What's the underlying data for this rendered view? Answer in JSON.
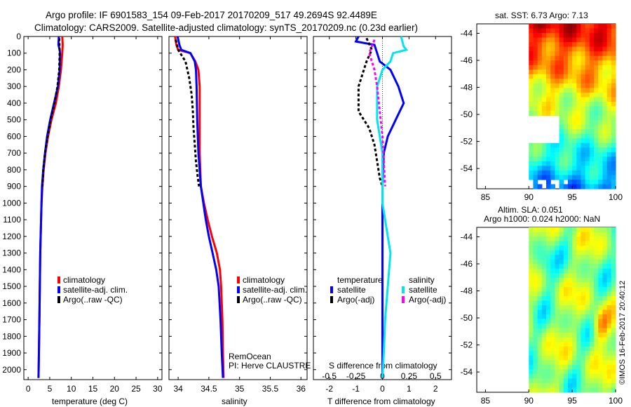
{
  "header": {
    "line1": "Argo profile: IF 6901583_154 09-Feb-2017 20170209_517 49.2694S 92.4489E",
    "line2": "Climatology: CARS2009. Satellite-adjusted climatology: synTS_20170209.nc (0.23d earlier)"
  },
  "colors": {
    "climatology": "#ff0000",
    "satellite": "#0000ff",
    "argo": "#000000",
    "satellite_salinity": "#00e5ee",
    "argo_salinity": "#ff00ff"
  },
  "depth_ticks": [
    "0",
    "100",
    "200",
    "300",
    "400",
    "500",
    "600",
    "700",
    "800",
    "900",
    "1000",
    "1100",
    "1200",
    "1300",
    "1400",
    "1500",
    "1600",
    "1700",
    "1800",
    "1900",
    "2000"
  ],
  "chart_data": [
    {
      "id": "temperature",
      "type": "line",
      "xlabel": "temperature (deg C)",
      "ylabel": "depth",
      "xlim": [
        -1,
        31
      ],
      "ylim": [
        2060,
        0
      ],
      "xticks": [
        "0",
        "5",
        "10",
        "15",
        "20",
        "25",
        "30"
      ],
      "xtick_values": [
        0,
        5,
        10,
        15,
        20,
        25,
        30
      ],
      "legend": [
        "climatology",
        "satellite-adj. clim.",
        "Argo(..raw -QC)"
      ],
      "series": [
        {
          "name": "climatology",
          "color": "#ff0000",
          "dash": "",
          "points": [
            [
              7.9,
              0
            ],
            [
              8.0,
              50
            ],
            [
              7.9,
              100
            ],
            [
              7.6,
              200
            ],
            [
              7.1,
              300
            ],
            [
              6.4,
              400
            ],
            [
              5.4,
              500
            ],
            [
              4.6,
              600
            ],
            [
              4.0,
              700
            ],
            [
              3.6,
              800
            ],
            [
              3.3,
              900
            ],
            [
              3.1,
              1000
            ],
            [
              3.0,
              1100
            ],
            [
              2.9,
              1200
            ],
            [
              2.8,
              1300
            ],
            [
              2.7,
              1500
            ],
            [
              2.6,
              1700
            ],
            [
              2.5,
              1900
            ],
            [
              2.4,
              2050
            ]
          ]
        },
        {
          "name": "satellite-adj. clim.",
          "color": "#0000ff",
          "dash": "",
          "points": [
            [
              7.1,
              0
            ],
            [
              7.0,
              50
            ],
            [
              7.3,
              80
            ],
            [
              7.4,
              100
            ],
            [
              7.3,
              200
            ],
            [
              6.9,
              300
            ],
            [
              6.0,
              400
            ],
            [
              5.1,
              500
            ],
            [
              4.4,
              600
            ],
            [
              3.9,
              700
            ],
            [
              3.5,
              800
            ],
            [
              3.2,
              900
            ],
            [
              3.1,
              1000
            ],
            [
              3.0,
              1100
            ],
            [
              2.9,
              1200
            ],
            [
              2.8,
              1300
            ],
            [
              2.7,
              1500
            ],
            [
              2.6,
              1700
            ],
            [
              2.5,
              1900
            ],
            [
              2.4,
              2050
            ]
          ]
        },
        {
          "name": "Argo(..raw -QC)",
          "color": "#000000",
          "dash": "4,3",
          "points": [
            [
              7.2,
              10
            ],
            [
              7.3,
              100
            ],
            [
              7.2,
              200
            ],
            [
              6.8,
              300
            ],
            [
              6.1,
              400
            ],
            [
              5.2,
              500
            ],
            [
              4.5,
              600
            ],
            [
              3.9,
              700
            ],
            [
              3.5,
              800
            ],
            [
              3.3,
              900
            ]
          ]
        }
      ]
    },
    {
      "id": "salinity",
      "type": "line",
      "xlabel": "salinity",
      "ylabel": "depth",
      "xlim": [
        33.85,
        36.1
      ],
      "ylim": [
        2060,
        0
      ],
      "xticks": [
        "34",
        "34.5",
        "35",
        "35.5",
        "36"
      ],
      "xtick_values": [
        34,
        34.5,
        35,
        35.5,
        36
      ],
      "legend": [
        "climatology",
        "satellite-adj. clim.",
        "Argo(..raw -QC)"
      ],
      "annotation": [
        "RemOcean",
        "PI: Herve CLAUSTRE"
      ],
      "series": [
        {
          "name": "climatology",
          "color": "#ff0000",
          "dash": "",
          "points": [
            [
              33.95,
              0
            ],
            [
              33.97,
              50
            ],
            [
              34.0,
              80
            ],
            [
              34.2,
              100
            ],
            [
              34.28,
              150
            ],
            [
              34.33,
              200
            ],
            [
              34.35,
              300
            ],
            [
              34.35,
              500
            ],
            [
              34.35,
              700
            ],
            [
              34.37,
              900
            ],
            [
              34.42,
              1000
            ],
            [
              34.48,
              1100
            ],
            [
              34.55,
              1200
            ],
            [
              34.63,
              1300
            ],
            [
              34.68,
              1400
            ],
            [
              34.7,
              1500
            ],
            [
              34.72,
              1700
            ],
            [
              34.73,
              1900
            ],
            [
              34.74,
              2050
            ]
          ]
        },
        {
          "name": "satellite-adj. clim.",
          "color": "#0000ff",
          "dash": "",
          "points": [
            [
              33.99,
              0
            ],
            [
              34.02,
              50
            ],
            [
              34.05,
              80
            ],
            [
              34.2,
              100
            ],
            [
              34.27,
              150
            ],
            [
              34.29,
              200
            ],
            [
              34.3,
              300
            ],
            [
              34.31,
              500
            ],
            [
              34.33,
              700
            ],
            [
              34.37,
              900
            ],
            [
              34.41,
              1000
            ],
            [
              34.45,
              1100
            ],
            [
              34.5,
              1200
            ],
            [
              34.56,
              1300
            ],
            [
              34.62,
              1400
            ],
            [
              34.66,
              1500
            ],
            [
              34.69,
              1700
            ],
            [
              34.71,
              1900
            ],
            [
              34.73,
              2050
            ]
          ]
        },
        {
          "name": "Argo(..raw -QC)",
          "color": "#000000",
          "dash": "4,3",
          "points": [
            [
              33.96,
              20
            ],
            [
              34.0,
              80
            ],
            [
              34.12,
              150
            ],
            [
              34.18,
              250
            ],
            [
              34.22,
              350
            ],
            [
              34.24,
              450
            ],
            [
              34.25,
              550
            ],
            [
              34.27,
              650
            ],
            [
              34.29,
              750
            ],
            [
              34.32,
              850
            ],
            [
              34.34,
              900
            ]
          ]
        }
      ]
    },
    {
      "id": "difference",
      "type": "line",
      "xlabel": "T difference from climatology",
      "xlabel_top": "S difference from climatology",
      "xlim": [
        -2.6,
        2.6
      ],
      "ylim": [
        2060,
        0
      ],
      "xticks": [
        "-2",
        "-1",
        "0",
        "1",
        "2"
      ],
      "xtick_values": [
        -2,
        -1,
        0,
        1,
        2
      ],
      "sticks": [
        "-0.5",
        "-0.25",
        "0",
        "0.25",
        "0.5"
      ],
      "stick_values": [
        -2,
        -1,
        0,
        1,
        2
      ],
      "legend_temperature_title": "temperature",
      "legend_salinity_title": "salinity",
      "legend": [
        "satellite",
        "Argo(-adj)",
        "satellite",
        "Argo(-adj)"
      ],
      "series": [
        {
          "name": "T satellite",
          "color": "#0000ff",
          "dash": "",
          "points": [
            [
              -0.9,
              0
            ],
            [
              -1.0,
              30
            ],
            [
              -0.3,
              50
            ],
            [
              -0.2,
              100
            ],
            [
              -0.1,
              150
            ],
            [
              0.3,
              200
            ],
            [
              0.6,
              300
            ],
            [
              0.8,
              400
            ],
            [
              0.5,
              500
            ],
            [
              0.2,
              600
            ],
            [
              0.05,
              700
            ],
            [
              0.0,
              900
            ],
            [
              0.0,
              1100
            ],
            [
              0.0,
              2050
            ]
          ]
        },
        {
          "name": "T Argo(-adj)",
          "color": "#000000",
          "dash": "4,3",
          "points": [
            [
              -0.6,
              10
            ],
            [
              -0.4,
              80
            ],
            [
              -0.6,
              150
            ],
            [
              -0.9,
              300
            ],
            [
              -0.9,
              450
            ],
            [
              -0.5,
              550
            ],
            [
              -0.3,
              650
            ],
            [
              -0.2,
              750
            ],
            [
              -0.1,
              850
            ],
            [
              0.0,
              900
            ]
          ]
        },
        {
          "name": "S satellite",
          "color": "#00e5ee",
          "dash": "",
          "points": [
            [
              0.7,
              0
            ],
            [
              0.8,
              60
            ],
            [
              0.9,
              80
            ],
            [
              0.4,
              100
            ],
            [
              0.3,
              150
            ],
            [
              0.0,
              200
            ],
            [
              -0.2,
              300
            ],
            [
              -0.2,
              500
            ],
            [
              0.0,
              700
            ],
            [
              0.0,
              900
            ],
            [
              0.0,
              1000
            ],
            [
              0.1,
              1100
            ],
            [
              0.2,
              1200
            ],
            [
              0.3,
              1300
            ],
            [
              0.2,
              1500
            ],
            [
              0.1,
              1700
            ],
            [
              0.05,
              1900
            ],
            [
              0.0,
              2050
            ]
          ]
        },
        {
          "name": "S Argo(-adj)",
          "color": "#ff00ff",
          "dash": "4,3",
          "points": [
            [
              -0.3,
              20
            ],
            [
              -0.5,
              100
            ],
            [
              -0.3,
              200
            ],
            [
              -0.2,
              300
            ],
            [
              -0.1,
              450
            ],
            [
              0.0,
              600
            ],
            [
              0.05,
              750
            ],
            [
              0.1,
              900
            ]
          ]
        }
      ]
    },
    {
      "id": "sst_map",
      "type": "heatmap",
      "title": "sat. SST: 6.73  Argo: 7.13",
      "xlim": [
        84,
        100
      ],
      "ylim": [
        -55.5,
        -43.3
      ],
      "xticks": [
        "85",
        "90",
        "95",
        "100"
      ],
      "xtick_values": [
        85,
        90,
        95,
        100
      ],
      "yticks": [
        "-44",
        "-46",
        "-48",
        "-50",
        "-52",
        "-54"
      ],
      "ytick_values": [
        -44,
        -46,
        -48,
        -50,
        -52,
        -54
      ],
      "data_xrange": [
        90,
        100
      ]
    },
    {
      "id": "sla_map",
      "type": "heatmap",
      "title_line1": "Altim. SLA: 0.051",
      "title_line2": "Argo h1000: 0.024 h2000: NaN",
      "xlim": [
        84,
        100
      ],
      "ylim": [
        -55.5,
        -43.3
      ],
      "xticks": [
        "85",
        "90",
        "95",
        "100"
      ],
      "xtick_values": [
        85,
        90,
        95,
        100
      ],
      "yticks": [
        "-44",
        "-46",
        "-48",
        "-50",
        "-52",
        "-54"
      ],
      "ytick_values": [
        -44,
        -46,
        -48,
        -50,
        -52,
        -54
      ],
      "data_xrange": [
        90,
        100
      ]
    }
  ],
  "credit": "©IMOS 16-Feb-2017 20:40:12"
}
